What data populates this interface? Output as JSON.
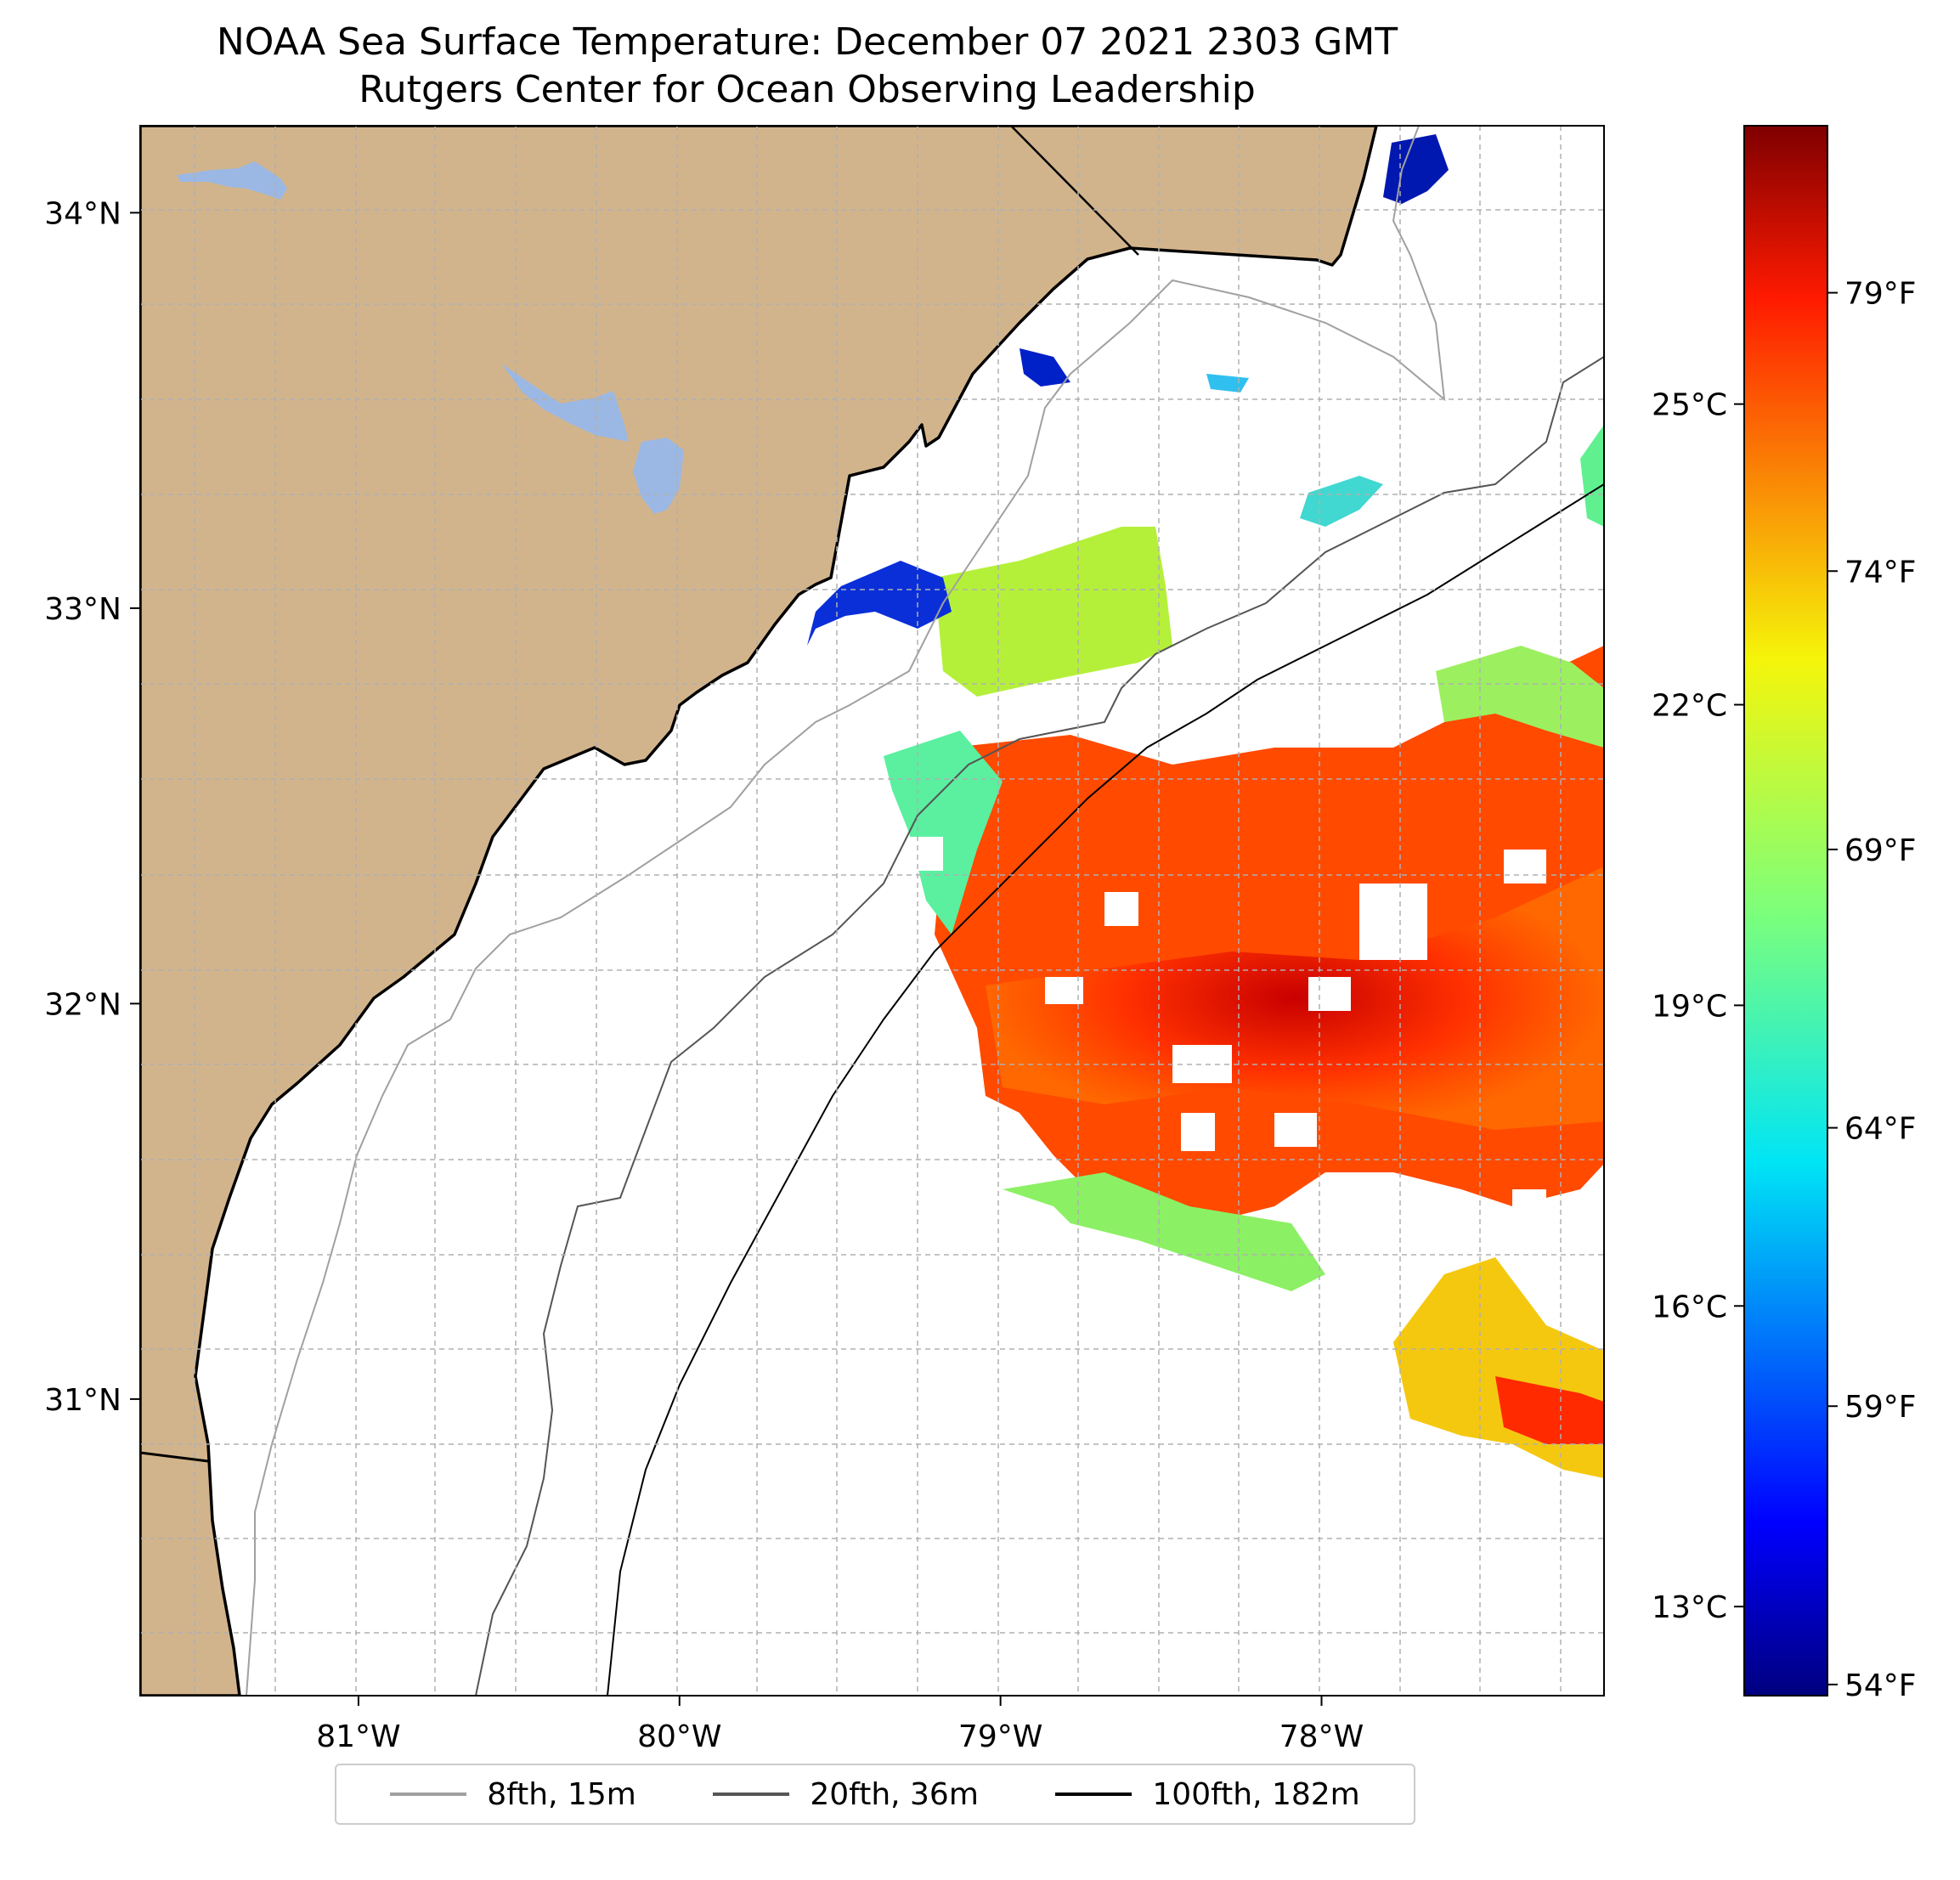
{
  "title": {
    "line1": "NOAA Sea Surface Temperature: December 07 2021 2303 GMT",
    "line2": "Rutgers Center for Ocean Observing Leadership"
  },
  "map": {
    "lon_range": [
      -81.68,
      -77.12
    ],
    "lat_range": [
      30.25,
      34.22
    ],
    "x_ticks": [
      {
        "value": -81,
        "label": "81°W"
      },
      {
        "value": -80,
        "label": "80°W"
      },
      {
        "value": -79,
        "label": "79°W"
      },
      {
        "value": -78,
        "label": "78°W"
      }
    ],
    "y_ticks": [
      {
        "value": 34,
        "label": "34°N"
      },
      {
        "value": 33,
        "label": "33°N"
      },
      {
        "value": 32,
        "label": "32°N"
      },
      {
        "value": 31,
        "label": "31°N"
      }
    ],
    "colors": {
      "land": "#d2b48c",
      "water_body": "#9bb8e4",
      "grid": "#b0b0b0"
    }
  },
  "colorbar": {
    "celsius_ticks": [
      {
        "value": 25,
        "label": "25°C"
      },
      {
        "value": 22,
        "label": "22°C"
      },
      {
        "value": 19,
        "label": "19°C"
      },
      {
        "value": 16,
        "label": "16°C"
      },
      {
        "value": 13,
        "label": "13°C"
      }
    ],
    "fahrenheit_ticks": [
      {
        "value": 79,
        "label": "79°F"
      },
      {
        "value": 74,
        "label": "74°F"
      },
      {
        "value": 69,
        "label": "69°F"
      },
      {
        "value": 64,
        "label": "64°F"
      },
      {
        "value": 59,
        "label": "59°F"
      },
      {
        "value": 54,
        "label": "54°F"
      }
    ],
    "range_f": [
      53.8,
      82.0
    ],
    "colormap": "jet"
  },
  "legend": {
    "items": [
      {
        "label": "8fth, 15m",
        "color": "#a0a0a0"
      },
      {
        "label": "20fth, 36m",
        "color": "#555555"
      },
      {
        "label": "100fth, 182m",
        "color": "#000000"
      }
    ]
  }
}
